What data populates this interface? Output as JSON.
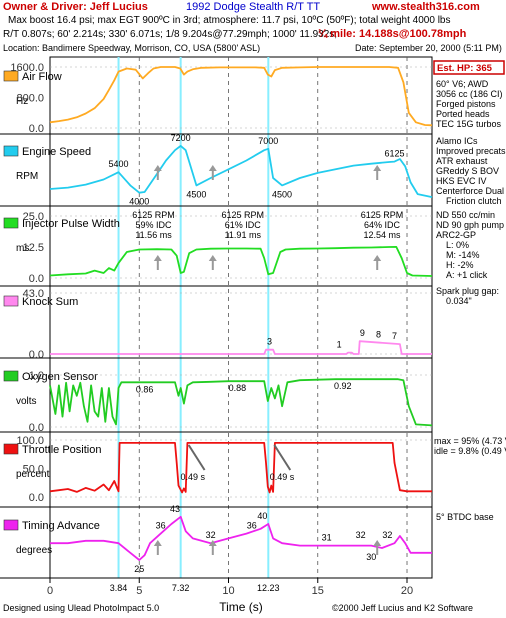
{
  "header": {
    "owner": "Owner & Driver: Jeff Lucius",
    "title": "1992 Dodge Stealth R/T TT",
    "site": "www.stealth316.com",
    "line1": "Max boost 16.4 psi; max EGT 900ºC in 3rd; atmosphere: 11.7 psi, 10ºC (50ºF); total weight 4000 lbs",
    "line2": "R/T 0.807s; 60' 2.214s; 330' 6.071s; 1/8 9.204s@77.29mph; 1000' 11.932s;",
    "mile": "¼ mile: 14.188s@100.78mph",
    "location": "Location: Bandimere Speedway, Morrison, CO, USA (5800' ASL)",
    "date": "Date: September 20, 2000 (5:11 PM)"
  },
  "footer": {
    "left": "Designed using Ulead PhotoImpact 5.0",
    "right": "©2000 Jeff Lucius and K2 Software"
  },
  "est_hp": "Est. HP: 365",
  "spec_notes": [
    "60° V6; AWD",
    "3056 cc (186 CI)",
    "Forged pistons",
    "Ported heads",
    "TEC 15G turbos",
    "Alamo ICs",
    "Improved precats",
    "ATR exhaust",
    "GReddy S BOV",
    "HKS EVC IV",
    "Centerforce Dual",
    "Friction clutch",
    "ND 550 cc/min",
    "ND 90 gph pump",
    "ARC2-GP",
    "L:    0%",
    "M:  -14%",
    "H:   -2%",
    "A: +1 click",
    "Spark plug gap:",
    "0.034\""
  ],
  "throttle_notes": [
    "max = 95% (4.73 V)",
    "idle = 9.8% (0.49 V)"
  ],
  "timing_note": "5° BTDC base",
  "colors": {
    "airflow": "#ffaa22",
    "rpm": "#22ccee",
    "injector": "#22dd22",
    "knock": "#ff88ee",
    "oxygen": "#22cc22",
    "throttle": "#ee1111",
    "timing": "#ee22ee",
    "cyan_line": "#88eeff",
    "accent_red": "#cc0000"
  },
  "chart_data": {
    "type": "line",
    "xlabel": "Time (s)",
    "xlim": [
      0,
      21.4
    ],
    "x_ticks": [
      "0",
      "5",
      "10",
      "15",
      "20"
    ],
    "x_tick_values": [
      0,
      5,
      10,
      15,
      20
    ],
    "x_markers": [
      "3.84",
      "7.32",
      "12.23"
    ],
    "x_marker_values": [
      3.84,
      7.32,
      12.23
    ],
    "cyan_lines": [
      3.84,
      7.32,
      12.23
    ],
    "dashed_lines": [
      5,
      10,
      15,
      20
    ],
    "panels": [
      {
        "name": "Air Flow",
        "unit": "Hz",
        "color": "#ffaa22",
        "y_labels": [
          "1600.0",
          "800.0",
          "0.0"
        ],
        "y_label_values": [
          1600,
          800,
          0
        ],
        "ylim": [
          0,
          1600
        ],
        "x": [
          0,
          0.5,
          1,
          1.5,
          2,
          2.5,
          3,
          3.3,
          3.6,
          3.84,
          4.3,
          4.8,
          5.2,
          5.5,
          5.8,
          6.2,
          6.6,
          7.0,
          7.3,
          7.5,
          7.7,
          8.0,
          8.5,
          9.5,
          10.5,
          11.5,
          12.0,
          12.2,
          12.4,
          12.6,
          13.0,
          14,
          15,
          16,
          17,
          18,
          19,
          19.5,
          19.8,
          20.1,
          20.5,
          21.0,
          21.4
        ],
        "y": [
          150,
          180,
          220,
          280,
          380,
          520,
          760,
          1000,
          1250,
          1480,
          1560,
          1530,
          1300,
          1440,
          1560,
          1600,
          1600,
          1600,
          1560,
          1400,
          1480,
          1540,
          1580,
          1590,
          1590,
          1590,
          1580,
          1400,
          1350,
          1520,
          1580,
          1590,
          1600,
          1600,
          1600,
          1600,
          1600,
          1580,
          1200,
          400,
          150,
          80,
          70
        ],
        "annotations": []
      },
      {
        "name": "Engine Speed",
        "unit": "RPM",
        "color": "#22ccee",
        "y_labels": [],
        "y_label_values": [],
        "ylim": [
          3500,
          7600
        ],
        "x": [
          0,
          1,
          2,
          3,
          3.84,
          4.5,
          5.0,
          5.3,
          5.5,
          6.0,
          6.5,
          7.0,
          7.32,
          7.6,
          8.2,
          9,
          10,
          11,
          12.0,
          12.23,
          12.5,
          13.0,
          14,
          15,
          16,
          17,
          18,
          19,
          19.3,
          19.6,
          19.9,
          20.2,
          20.6,
          21.4
        ],
        "y": [
          4250,
          4350,
          4550,
          4900,
          5400,
          4500,
          4000,
          4050,
          4400,
          5300,
          6200,
          6900,
          7200,
          6900,
          4500,
          5000,
          5600,
          6200,
          6900,
          7000,
          5000,
          4500,
          5000,
          5350,
          5600,
          5850,
          5980,
          6100,
          6125,
          6300,
          5800,
          4700,
          3900,
          3700
        ],
        "annotations": [
          "5400",
          "7200",
          "4000",
          "4500",
          "7000",
          "4500",
          "6125"
        ],
        "annotation_x": [
          3.84,
          7.32,
          5.0,
          8.2,
          12.23,
          13.0,
          19.3
        ],
        "annotation_y": [
          5400,
          7200,
          4000,
          4500,
          7000,
          4500,
          6125
        ]
      },
      {
        "name": "Injector Pulse Width",
        "unit": "ms",
        "color": "#22dd22",
        "y_labels": [
          "25.0",
          "12.5",
          "0.0"
        ],
        "y_label_values": [
          25,
          12.5,
          0
        ],
        "ylim": [
          0,
          25
        ],
        "x": [
          0,
          1,
          2,
          2.5,
          3,
          3.3,
          3.6,
          3.84,
          4.3,
          5.0,
          6.0,
          6.8,
          7.1,
          7.32,
          7.5,
          7.8,
          8.2,
          9,
          10,
          11,
          11.8,
          12.0,
          12.23,
          12.5,
          12.9,
          13.2,
          14,
          15,
          16,
          17,
          18,
          19,
          19.4,
          19.7,
          20.0,
          20.3,
          21.4
        ],
        "y": [
          1.0,
          1.5,
          1.8,
          3.0,
          2.0,
          4.0,
          3.0,
          6.0,
          10.5,
          11.5,
          11.6,
          11.5,
          9.0,
          2.0,
          2.5,
          10.0,
          11.5,
          11.8,
          11.9,
          11.9,
          11.8,
          8.0,
          1.5,
          2.0,
          10.5,
          11.5,
          11.8,
          11.9,
          12.0,
          12.2,
          12.3,
          12.5,
          12.54,
          8.0,
          2.0,
          1.0,
          0.8
        ],
        "annotations": [
          "6125 RPM",
          "59% IDC",
          "11.56 ms",
          "6125 RPM",
          "61% IDC",
          "11.91 ms",
          "6125 RPM",
          "64% IDC",
          "12.54 ms"
        ],
        "annotation_x": [
          5.8,
          5.8,
          5.8,
          10.8,
          10.8,
          10.8,
          18.6,
          18.6,
          18.6
        ]
      },
      {
        "name": "Knock Sum",
        "unit": "",
        "color": "#ff88ee",
        "y_labels": [
          "43.0",
          "0.0"
        ],
        "y_label_values": [
          43,
          0
        ],
        "ylim": [
          0,
          43
        ],
        "x": [
          0,
          12.0,
          12.1,
          12.5,
          12.6,
          16.6,
          16.7,
          16.9,
          17.0,
          17.3,
          17.35,
          18.5,
          19.6,
          19.7,
          21.4
        ],
        "y": [
          0,
          0,
          3,
          3,
          0,
          0,
          1,
          1,
          0,
          0,
          9,
          8,
          7,
          0,
          0
        ],
        "annotations": [
          "3",
          "1",
          "9",
          "8",
          "7"
        ],
        "annotation_x": [
          12.3,
          16.2,
          17.5,
          18.4,
          19.3
        ],
        "annotation_y": [
          3,
          1,
          9,
          8,
          7
        ]
      },
      {
        "name": "Oxygen Sensor",
        "unit": "volts",
        "color": "#22cc22",
        "y_labels": [
          "1.0",
          "0.0"
        ],
        "y_label_values": [
          1,
          0
        ],
        "ylim": [
          0,
          1
        ],
        "x": [
          0,
          0.3,
          0.5,
          0.7,
          0.9,
          1.1,
          1.3,
          1.5,
          1.7,
          1.9,
          2.1,
          2.3,
          2.5,
          2.7,
          2.9,
          3.1,
          3.3,
          3.5,
          3.7,
          3.84,
          4.0,
          5.0,
          6.0,
          7.0,
          7.2,
          7.32,
          7.5,
          7.7,
          8.0,
          9.0,
          10,
          11,
          12.0,
          12.2,
          12.4,
          12.6,
          12.8,
          13.0,
          13.3,
          14,
          15,
          16,
          17,
          18,
          19,
          19.5,
          19.8,
          20.1,
          20.5,
          21.4
        ],
        "y": [
          0.8,
          0.25,
          0.8,
          0.2,
          0.85,
          0.3,
          0.8,
          0.6,
          0.85,
          0.4,
          0.1,
          0.8,
          0.3,
          0.2,
          0.75,
          0.1,
          0.75,
          0.2,
          0.05,
          0.75,
          0.86,
          0.86,
          0.86,
          0.86,
          0.6,
          0.75,
          0.45,
          0.8,
          0.86,
          0.87,
          0.88,
          0.88,
          0.88,
          0.5,
          0.75,
          0.55,
          0.8,
          0.4,
          0.86,
          0.9,
          0.91,
          0.92,
          0.92,
          0.92,
          0.92,
          0.92,
          0.9,
          0.4,
          0.05,
          0.03
        ],
        "annotations": [
          "0.86",
          "0.88",
          "0.92"
        ],
        "annotation_x": [
          5.3,
          10.5,
          16.4
        ],
        "annotation_y": [
          0.86,
          0.88,
          0.92
        ]
      },
      {
        "name": "Throttle Position",
        "unit": "percent",
        "color": "#ee1111",
        "y_labels": [
          "100.0",
          "50.0",
          "0.0"
        ],
        "y_label_values": [
          100,
          50,
          0
        ],
        "ylim": [
          0,
          100
        ],
        "x": [
          0,
          0.5,
          1,
          1.5,
          2,
          2.5,
          3,
          3.3,
          3.6,
          3.84,
          3.9,
          7.0,
          7.1,
          7.2,
          7.4,
          7.5,
          7.6,
          7.7,
          7.8,
          12.0,
          12.1,
          12.2,
          12.3,
          12.4,
          12.5,
          12.6,
          19.2,
          19.3,
          19.6,
          20.0,
          21.4
        ],
        "y": [
          10,
          12,
          14,
          9,
          16,
          11,
          22,
          12,
          28,
          10,
          95,
          95,
          60,
          20,
          8,
          15,
          9,
          95,
          95,
          95,
          60,
          18,
          8,
          20,
          9,
          95,
          95,
          60,
          12,
          10,
          10
        ],
        "annotations": [
          "0.49 s",
          "0.49 s"
        ],
        "annotation_x": [
          8.0,
          13.0
        ]
      },
      {
        "name": "Timing Advance",
        "unit": "degrees",
        "color": "#ee22ee",
        "y_labels": [],
        "y_label_values": [],
        "ylim": [
          20,
          45
        ],
        "x": [
          0,
          1,
          2,
          3,
          3.84,
          4.5,
          5.0,
          5.3,
          5.6,
          6.2,
          6.8,
          7.32,
          7.6,
          8.0,
          9,
          10,
          11,
          11.8,
          12.23,
          12.5,
          13.0,
          14,
          15,
          16,
          17,
          18,
          18.6,
          19.3,
          19.6,
          19.9,
          20.2,
          21.4
        ],
        "y": [
          32,
          32,
          33,
          33,
          32,
          28,
          25,
          27,
          32,
          36,
          40,
          43,
          37,
          34,
          32,
          34,
          36,
          38,
          40,
          34,
          32,
          31,
          31,
          31,
          31,
          31,
          30,
          32,
          35,
          32,
          28,
          28
        ],
        "annotations": [
          "25",
          "36",
          "43",
          "32",
          "36",
          "40",
          "31",
          "32",
          "30",
          "32"
        ],
        "annotation_x": [
          5.0,
          6.2,
          7.0,
          9.0,
          11.3,
          11.9,
          15.5,
          17.4,
          18.0,
          18.9
        ],
        "annotation_y": [
          25,
          36,
          43,
          32,
          36,
          40,
          31,
          32,
          30,
          32
        ]
      }
    ]
  }
}
